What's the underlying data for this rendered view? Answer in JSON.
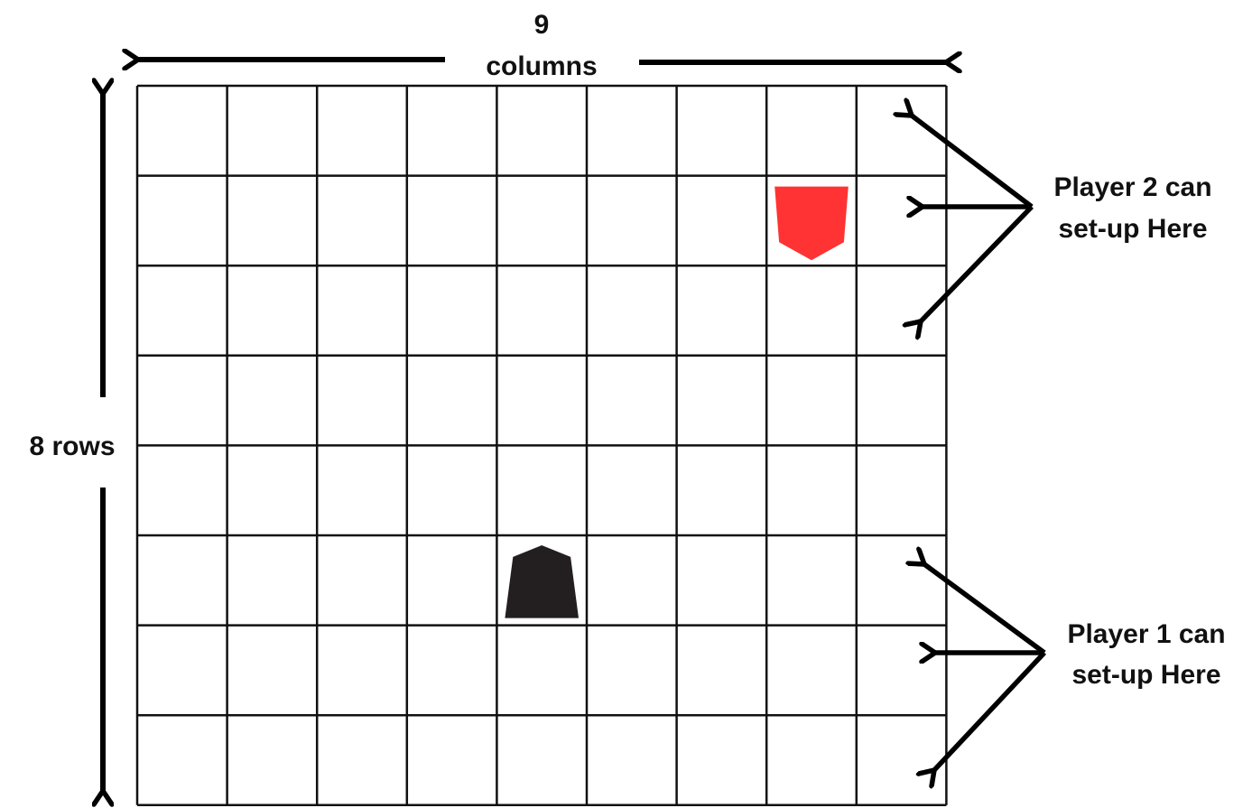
{
  "board": {
    "columns": 9,
    "rows": 8,
    "columns_label_number": "9",
    "columns_label_word": "columns",
    "rows_label": "8 rows"
  },
  "pieces": [
    {
      "name": "player-2-piece",
      "owner": "Player 2",
      "color": "#ff3333",
      "row": 2,
      "col": 8,
      "orientation": "down"
    },
    {
      "name": "player-1-piece",
      "owner": "Player 1",
      "color": "#231f20",
      "row": 6,
      "col": 5,
      "orientation": "up"
    }
  ],
  "annotations": {
    "player2": {
      "line1": "Player 2 can",
      "line2": "set-up Here"
    },
    "player1": {
      "line1": "Player 1 can",
      "line2": "set-up Here"
    }
  },
  "colors": {
    "grid_line": "#111111",
    "arrow": "#000000",
    "background": "#ffffff"
  }
}
